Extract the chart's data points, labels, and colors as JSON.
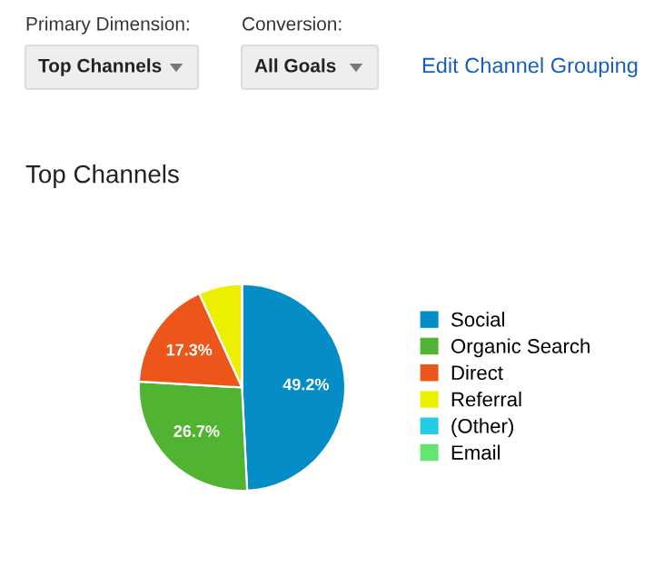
{
  "chart_data": {
    "type": "pie",
    "title": "Top Channels",
    "annotations": [
      "Primary Dimension:",
      "Top Channels",
      "Conversion:",
      "All Goals",
      "Edit Channel Grouping"
    ],
    "categories": [
      "Social",
      "Organic Search",
      "Direct",
      "Referral",
      "(Other)",
      "Email"
    ],
    "values": [
      49.2,
      26.7,
      17.3,
      6.8,
      0,
      0
    ],
    "colors": [
      "#058dc7",
      "#50b432",
      "#ed561b",
      "#edef00",
      "#24cbe5",
      "#64e572"
    ],
    "value_labels": [
      "49.2%",
      "26.7%",
      "17.3%",
      null,
      null,
      null
    ],
    "legend": "right"
  }
}
